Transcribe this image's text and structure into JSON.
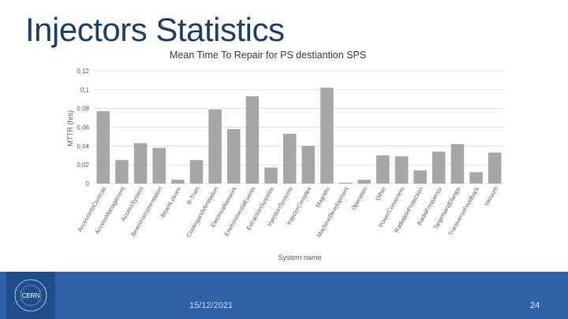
{
  "slide": {
    "title": "Injectors Statistics",
    "date": "15/12/2021",
    "page_number": "24",
    "logo_text": "CERN"
  },
  "colors": {
    "title": "#1f3f66",
    "bar": "#a6a6a6",
    "grid": "#d9d9d9",
    "footer": "#2f62a6"
  },
  "chart_data": {
    "type": "bar",
    "title": "Mean Time To Repair for PS destiantion SPS",
    "xlabel": "System name",
    "ylabel": "MTTR (hrs)",
    "ylim": [
      0,
      0.12
    ],
    "yticks": [
      0,
      0.02,
      0.04,
      0.06,
      0.08,
      0.1,
      0.12
    ],
    "ytick_labels": [
      "0",
      "0,02",
      "0,04",
      "0,06",
      "0,08",
      "0,1",
      "0,12"
    ],
    "grid": true,
    "categories": [
      "AccessInfoControls",
      "AccessManagement",
      "AccessSystem",
      "BeamInstrumentation",
      "BeamLosses",
      "B-Train",
      "CoolingandVentilation",
      "ElectricalNetwork",
      "EnvironmentalEvents",
      "ExtractionSystems",
      "InjectionSystems",
      "InjectorComplex",
      "Magnets",
      "MachineDevelopment",
      "Operation",
      "Other",
      "PowerConverters",
      "RadiationProtection",
      "RadioFrequency",
      "TargetsandDumps",
      "TransverseFeedback",
      "Vacuum"
    ],
    "values": [
      0.077,
      0.025,
      0.043,
      0.038,
      0.004,
      0.025,
      0.079,
      0.058,
      0.093,
      0.017,
      0.053,
      0.04,
      0.102,
      0.001,
      0.004,
      0.03,
      0.029,
      0.014,
      0.034,
      0.042,
      0.012,
      0.033
    ]
  }
}
